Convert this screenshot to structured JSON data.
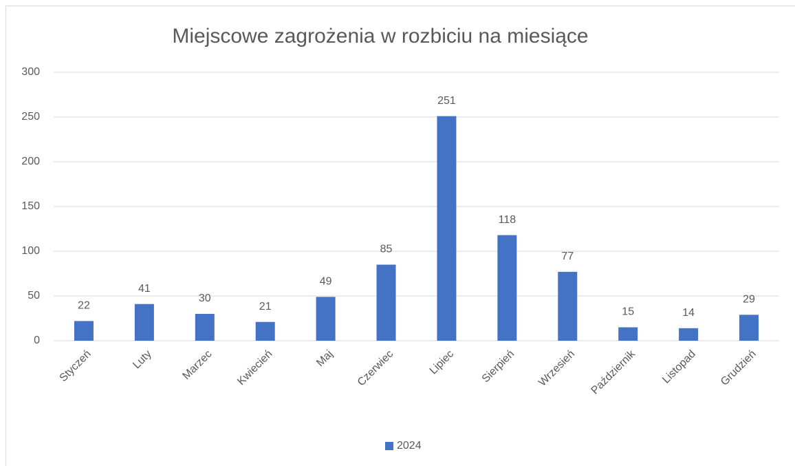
{
  "chart_data": {
    "type": "bar",
    "title": "Miejscowe zagrożenia w rozbiciu na miesiące",
    "categories": [
      "Styczeń",
      "Luty",
      "Marzec",
      "Kwiecień",
      "Maj",
      "Czerwiec",
      "Lipiec",
      "Sierpień",
      "Wrzesień",
      "Październik",
      "Listopad",
      "Grudzień"
    ],
    "series": [
      {
        "name": "2024",
        "color": "#4472c4",
        "values": [
          22,
          41,
          30,
          21,
          49,
          85,
          251,
          118,
          77,
          15,
          14,
          29
        ]
      }
    ],
    "ylim": [
      0,
      300
    ],
    "yticks": [
      0,
      50,
      100,
      150,
      200,
      250,
      300
    ],
    "grid": true,
    "legend": "bottom"
  }
}
